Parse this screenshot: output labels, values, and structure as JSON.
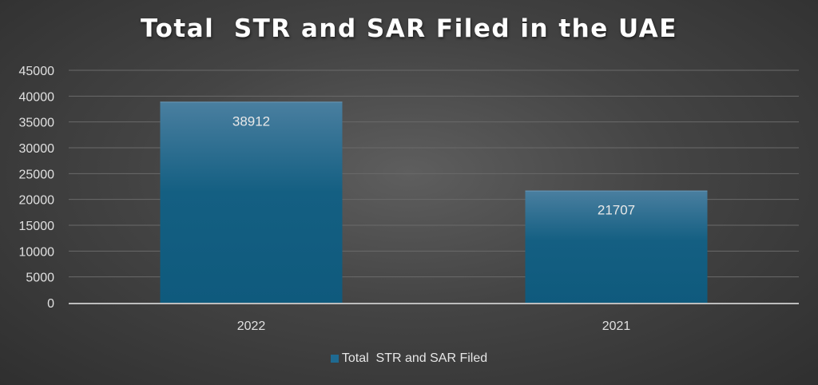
{
  "chart_data": {
    "type": "bar",
    "title": "Total  STR and SAR Filed in the UAE",
    "xlabel": "",
    "ylabel": "",
    "categories": [
      "2022",
      "2021"
    ],
    "series": [
      {
        "name": "Total  STR and SAR Filed",
        "values": [
          38912,
          21707
        ]
      }
    ],
    "ylim": [
      0,
      45000
    ],
    "yticks": [
      0,
      5000,
      10000,
      15000,
      20000,
      25000,
      30000,
      35000,
      40000,
      45000
    ],
    "data_labels": [
      "38912",
      "21707"
    ],
    "grid": true,
    "legend_position": "bottom",
    "colors": {
      "bar_top": "#4a7fa0",
      "bar_bottom": "#0f5a7d",
      "swatch": "#1f6a91",
      "grid": "#6a6a6a",
      "text": "#e0e0e0"
    }
  }
}
